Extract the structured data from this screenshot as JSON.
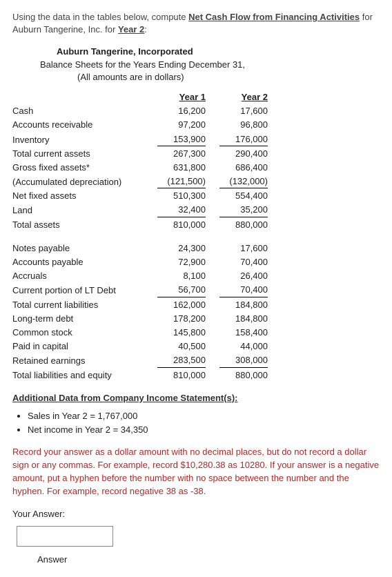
{
  "prompt": {
    "lead": "Using the data in the tables below, compute ",
    "target": "Net Cash Flow from Financing Activities",
    "mid": " for Auburn Tangerine, Inc. for ",
    "year": "Year 2",
    "tail": ":"
  },
  "header": {
    "company": "Auburn Tangerine, Incorporated",
    "line2": "Balance Sheets for the Years Ending December 31,",
    "line3": "(All amounts are in dollars)"
  },
  "cols": {
    "y1": "Year 1",
    "y2": "Year 2"
  },
  "bs": [
    {
      "label": "Cash",
      "y1": "16,200",
      "y2": "17,600"
    },
    {
      "label": "Accounts receivable",
      "y1": "97,200",
      "y2": "96,800"
    },
    {
      "label": "Inventory",
      "y1": "153,900",
      "y2": "176,000",
      "rule": true
    },
    {
      "label": "Total current assets",
      "y1": "267,300",
      "y2": "290,400",
      "indent": true
    },
    {
      "label": "Gross fixed assets*",
      "y1": "631,800",
      "y2": "686,400"
    },
    {
      "label": "(Accumulated depreciation)",
      "y1": "(121,500)",
      "y2": "(132,000)",
      "rule": true
    },
    {
      "label": "Net fixed assets",
      "y1": "510,300",
      "y2": "554,400"
    },
    {
      "label": "Land",
      "y1": "32,400",
      "y2": "35,200",
      "rule": true
    },
    {
      "label": "Total assets",
      "y1": "810,000",
      "y2": "880,000",
      "indent": true
    }
  ],
  "liab": [
    {
      "label": "Notes payable",
      "y1": "24,300",
      "y2": "17,600"
    },
    {
      "label": "Accounts payable",
      "y1": "72,900",
      "y2": "70,400"
    },
    {
      "label": "Accruals",
      "y1": "8,100",
      "y2": "26,400"
    },
    {
      "label": "Current portion of LT Debt",
      "y1": "56,700",
      "y2": "70,400",
      "rule": true
    },
    {
      "label": "Total current liabilities",
      "y1": "162,000",
      "y2": "184,800",
      "indent": true
    },
    {
      "label": "Long-term debt",
      "y1": "178,200",
      "y2": "184,800"
    },
    {
      "label": "Common stock",
      "y1": "145,800",
      "y2": "158,400"
    },
    {
      "label": "Paid in capital",
      "y1": "40,500",
      "y2": "44,000"
    },
    {
      "label": "Retained earnings",
      "y1": "283,500",
      "y2": "308,000",
      "rule": true
    },
    {
      "label": "Total liabilities and equity",
      "y1": "810,000",
      "y2": "880,000",
      "indent": true
    }
  ],
  "additional": {
    "heading": "Additional Data from Company Income Statement(s):",
    "items": [
      "Sales in Year 2 = 1,767,000",
      "Net income in Year 2 = 34,350"
    ]
  },
  "instructions": "Record your answer as a dollar amount with no decimal places, but do not record a dollar sign or any commas. For example, record $10,280.38 as 10280. If your answer is a negative amount, put a hyphen before the number with no space between the number and the hyphen. For example, record negative 38 as -38.",
  "answer": {
    "label": "Your Answer:",
    "button": "Answer",
    "placeholder": ""
  }
}
